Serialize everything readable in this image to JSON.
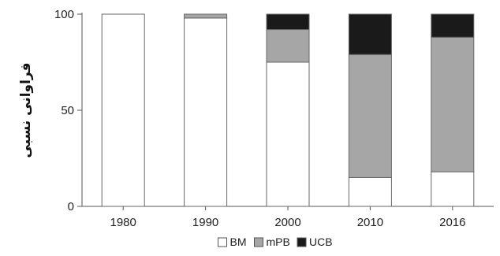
{
  "chart_data": {
    "type": "bar",
    "stacked": true,
    "categories": [
      "1980",
      "1990",
      "2000",
      "2010",
      "2016"
    ],
    "series": [
      {
        "name": "BM",
        "color": "#ffffff",
        "values": [
          100,
          98,
          75,
          15,
          18
        ]
      },
      {
        "name": "mPB",
        "color": "#a6a6a6",
        "values": [
          0,
          2,
          17,
          64,
          70
        ]
      },
      {
        "name": "UCB",
        "color": "#1a1a1a",
        "values": [
          0,
          0,
          8,
          21,
          12
        ]
      }
    ],
    "title": "",
    "xlabel": "",
    "ylabel": "فراوانی نسبی",
    "ylim": [
      0,
      100
    ],
    "yticks": [
      0,
      50,
      100
    ],
    "legend_position": "bottom",
    "grid": false
  }
}
